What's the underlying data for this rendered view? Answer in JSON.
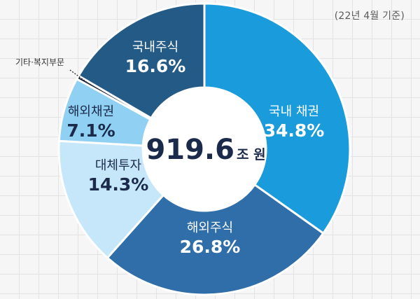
{
  "date_note": "(22년 4월 기준)",
  "colors": {
    "domestic_bond": "#1a9bdc",
    "overseas_stock": "#2f6ea9",
    "alternative": "#c6e7fa",
    "overseas_bond": "#8fd0f3",
    "other": "#1b2338",
    "domestic_stock": "#245a86",
    "center_text": "#1b2a4a"
  },
  "chart_data": {
    "type": "pie",
    "donut": true,
    "center_label": {
      "value": "919.6",
      "unit": "조 원"
    },
    "slices": [
      {
        "name": "국내 채권",
        "value": 34.8,
        "label": "34.8%",
        "color": "#1a9bdc",
        "text_color": "#ffffff"
      },
      {
        "name": "해외주식",
        "value": 26.8,
        "label": "26.8%",
        "color": "#2f6ea9",
        "text_color": "#ffffff"
      },
      {
        "name": "대체투자",
        "value": 14.3,
        "label": "14.3%",
        "color": "#c6e7fa",
        "text_color": "#1b2a4a"
      },
      {
        "name": "해외채권",
        "value": 7.1,
        "label": "7.1%",
        "color": "#8fd0f3",
        "text_color": "#1b2a4a"
      },
      {
        "name": "기타·복지부문",
        "value": 0.4,
        "label": "",
        "color": "#1b2338",
        "text_color": "#1b2a4a",
        "callout": true
      },
      {
        "name": "국내주식",
        "value": 16.6,
        "label": "16.6%",
        "color": "#245a86",
        "text_color": "#ffffff"
      }
    ]
  }
}
